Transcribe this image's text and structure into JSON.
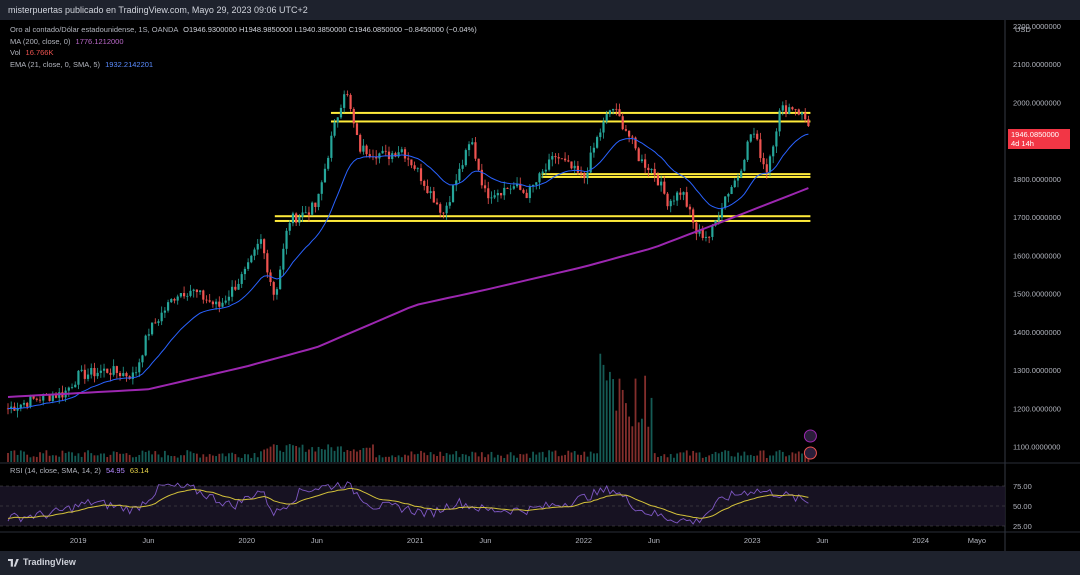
{
  "header": {
    "published_by": "misterpuertas publicado en TradingView.com, Mayo 29, 2023 09:06 UTC+2"
  },
  "legend": {
    "symbol": "Oro al contado/Dólar estadounidense, 1S, OANDA",
    "ohlc": "O1946.9300000  H1948.9850000  L1940.3850000  C1946.0850000  −0.8450000 (−0.04%)",
    "ma_label": "MA (200, close, 0)",
    "ma_value": "1776.1212000",
    "vol_label": "Vol",
    "vol_value": "16.766K",
    "ema_label": "EMA (21, close, 0, SMA, 5)",
    "ema_value": "1932.2142201"
  },
  "rsi_legend": {
    "label": "RSI (14, close, SMA, 14, 2)",
    "rsi_value": "54.95",
    "ma_value": "63.14"
  },
  "price_tag": {
    "price": "1946.0850000",
    "countdown": "4d 14h"
  },
  "brand": "TradingView",
  "colors": {
    "up": "#26a69a",
    "down": "#ef5350",
    "ma200": "#9c27b0",
    "ema21": "#2962ff",
    "support": "#ffeb3b",
    "rsi": "#7e57c2",
    "rsi_ma": "#d4c23a"
  },
  "chart_data": {
    "type": "candlestick",
    "y_axis_unit": "USD",
    "ylim": [
      1060,
      2210
    ],
    "y_ticks": [
      1100,
      1200,
      1300,
      1400,
      1500,
      1600,
      1700,
      1800,
      1900,
      2000,
      2100,
      2200
    ],
    "y_tick_labels": [
      "1100.0000000",
      "1200.0000000",
      "1300.0000000",
      "1400.0000000",
      "1500.0000000",
      "1600.0000000",
      "1700.0000000",
      "1800.0000000",
      "1900.0000000",
      "2000.0000000",
      "2100.0000000",
      "2200.0000000"
    ],
    "x_tick_labels": [
      "2019",
      "Jun",
      "2020",
      "Jun",
      "2021",
      "Jun",
      "2022",
      "Jun",
      "2023",
      "Jun",
      "2024",
      "Mayo"
    ],
    "x_range": [
      "2018-08",
      "2024-07"
    ],
    "x_ticks": [
      "2019-01",
      "2019-06",
      "2020-01",
      "2020-06",
      "2021-01",
      "2021-06",
      "2022-01",
      "2022-06",
      "2023-01",
      "2023-06",
      "2024-01",
      "2024-05"
    ],
    "close_path": [
      [
        "2018-08",
        1200
      ],
      [
        "2018-10",
        1225
      ],
      [
        "2018-12",
        1240
      ],
      [
        "2019-01",
        1285
      ],
      [
        "2019-03",
        1300
      ],
      [
        "2019-05",
        1285
      ],
      [
        "2019-06",
        1400
      ],
      [
        "2019-08",
        1500
      ],
      [
        "2019-09",
        1510
      ],
      [
        "2019-11",
        1465
      ],
      [
        "2020-01",
        1560
      ],
      [
        "2020-02",
        1640
      ],
      [
        "2020-03",
        1490
      ],
      [
        "2020-04",
        1690
      ],
      [
        "2020-06",
        1730
      ],
      [
        "2020-07",
        1900
      ],
      [
        "2020-08",
        2040
      ],
      [
        "2020-09",
        1880
      ],
      [
        "2020-11",
        1860
      ],
      [
        "2020-12",
        1880
      ],
      [
        "2021-01",
        1830
      ],
      [
        "2021-03",
        1710
      ],
      [
        "2021-05",
        1900
      ],
      [
        "2021-06",
        1760
      ],
      [
        "2021-08",
        1780
      ],
      [
        "2021-09",
        1760
      ],
      [
        "2021-11",
        1860
      ],
      [
        "2022-01",
        1800
      ],
      [
        "2022-02",
        1910
      ],
      [
        "2022-03",
        1990
      ],
      [
        "2022-04",
        1930
      ],
      [
        "2022-05",
        1850
      ],
      [
        "2022-06",
        1820
      ],
      [
        "2022-07",
        1740
      ],
      [
        "2022-08",
        1770
      ],
      [
        "2022-09",
        1660
      ],
      [
        "2022-10",
        1650
      ],
      [
        "2022-11",
        1750
      ],
      [
        "2022-12",
        1810
      ],
      [
        "2023-01",
        1930
      ],
      [
        "2023-02",
        1820
      ],
      [
        "2023-03",
        1980
      ],
      [
        "2023-04",
        1990
      ],
      [
        "2023-05",
        1946
      ]
    ],
    "ma200_path": [
      [
        "2018-08",
        1230
      ],
      [
        "2019-06",
        1250
      ],
      [
        "2020-01",
        1310
      ],
      [
        "2020-06",
        1360
      ],
      [
        "2021-01",
        1470
      ],
      [
        "2021-06",
        1510
      ],
      [
        "2022-01",
        1570
      ],
      [
        "2022-06",
        1620
      ],
      [
        "2022-11",
        1690
      ],
      [
        "2023-05",
        1776
      ]
    ],
    "levels": [
      {
        "name": "resistance-high",
        "low": 1950,
        "high": 1975,
        "from": "2020-07",
        "to": "2023-05"
      },
      {
        "name": "mid",
        "low": 1805,
        "high": 1815,
        "from": "2021-10",
        "to": "2023-05"
      },
      {
        "name": "support",
        "low": 1690,
        "high": 1705,
        "from": "2020-03",
        "to": "2023-05"
      }
    ],
    "rsi_ticks": [
      25,
      50,
      75
    ],
    "rsi_tick_labels": [
      "25.00",
      "50.00",
      "75.00"
    ],
    "rsi_path": [
      [
        "2018-08",
        35
      ],
      [
        "2018-11",
        40
      ],
      [
        "2019-02",
        55
      ],
      [
        "2019-05",
        45
      ],
      [
        "2019-07",
        75
      ],
      [
        "2019-09",
        72
      ],
      [
        "2019-12",
        50
      ],
      [
        "2020-02",
        70
      ],
      [
        "2020-03",
        40
      ],
      [
        "2020-05",
        70
      ],
      [
        "2020-08",
        78
      ],
      [
        "2020-10",
        50
      ],
      [
        "2020-12",
        48
      ],
      [
        "2021-02",
        40
      ],
      [
        "2021-04",
        55
      ],
      [
        "2021-06",
        45
      ],
      [
        "2021-09",
        45
      ],
      [
        "2021-12",
        55
      ],
      [
        "2022-03",
        72
      ],
      [
        "2022-05",
        45
      ],
      [
        "2022-07",
        35
      ],
      [
        "2022-09",
        30
      ],
      [
        "2022-11",
        60
      ],
      [
        "2023-01",
        70
      ],
      [
        "2023-03",
        65
      ],
      [
        "2023-05",
        55
      ]
    ]
  }
}
